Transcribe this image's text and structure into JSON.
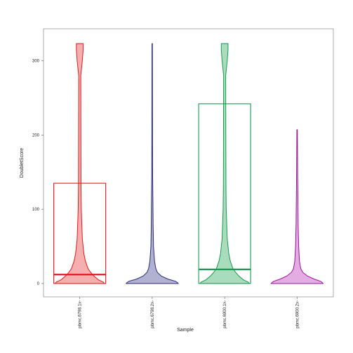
{
  "chart_data": {
    "type": "violin",
    "xlabel": "Sample",
    "ylabel": "DoubletScore",
    "ylim": [
      -18,
      343
    ],
    "yticks": [
      0,
      100,
      200,
      300
    ],
    "categories": [
      "pbmc.6798.1x",
      "pbmc.6798.2x",
      "pbmc.6900.1x",
      "pbmc.6900.2x"
    ],
    "tick_labels": [
      "pbmc.6798.1x-",
      "pbmc.6798.2x-",
      "pbmc.6900.1x-",
      "pbmc.6900.2x-"
    ],
    "series": [
      {
        "color": "#e41a1c",
        "fill": "#f4a6a6",
        "box": {
          "lower": 0,
          "median": 12,
          "upper": 135
        },
        "violin_max": 323,
        "profile": [
          [
            0,
            0.95
          ],
          [
            2,
            0.9
          ],
          [
            5,
            0.72
          ],
          [
            10,
            0.55
          ],
          [
            15,
            0.42
          ],
          [
            20,
            0.32
          ],
          [
            30,
            0.22
          ],
          [
            40,
            0.16
          ],
          [
            60,
            0.1
          ],
          [
            80,
            0.08
          ],
          [
            100,
            0.06
          ],
          [
            130,
            0.05
          ],
          [
            200,
            0.045
          ],
          [
            280,
            0.04
          ],
          [
            300,
            0.1
          ],
          [
            315,
            0.13
          ],
          [
            323,
            0.13
          ]
        ]
      },
      {
        "color": "#2b2b7a",
        "fill": "#a8a8cc",
        "box": null,
        "violin_max": 323,
        "profile": [
          [
            0,
            1.0
          ],
          [
            1,
            0.98
          ],
          [
            3,
            0.9
          ],
          [
            6,
            0.6
          ],
          [
            10,
            0.35
          ],
          [
            15,
            0.2
          ],
          [
            20,
            0.14
          ],
          [
            30,
            0.09
          ],
          [
            50,
            0.05
          ],
          [
            80,
            0.035
          ],
          [
            100,
            0.03
          ],
          [
            150,
            0.015
          ],
          [
            200,
            0.012
          ],
          [
            323,
            0.008
          ]
        ]
      },
      {
        "color": "#1a9a50",
        "fill": "#9fd8b6",
        "box": {
          "lower": 0,
          "median": 19,
          "upper": 242
        },
        "violin_max": 323,
        "profile": [
          [
            0,
            0.95
          ],
          [
            2,
            0.9
          ],
          [
            5,
            0.72
          ],
          [
            10,
            0.55
          ],
          [
            15,
            0.42
          ],
          [
            20,
            0.32
          ],
          [
            30,
            0.22
          ],
          [
            40,
            0.16
          ],
          [
            60,
            0.1
          ],
          [
            80,
            0.08
          ],
          [
            100,
            0.06
          ],
          [
            130,
            0.05
          ],
          [
            200,
            0.045
          ],
          [
            280,
            0.04
          ],
          [
            300,
            0.1
          ],
          [
            315,
            0.13
          ],
          [
            323,
            0.13
          ]
        ]
      },
      {
        "color": "#9a169a",
        "fill": "#e0a4e0",
        "box": null,
        "violin_max": 207,
        "profile": [
          [
            0,
            1.0
          ],
          [
            1,
            0.98
          ],
          [
            3,
            0.9
          ],
          [
            6,
            0.65
          ],
          [
            10,
            0.4
          ],
          [
            15,
            0.22
          ],
          [
            20,
            0.14
          ],
          [
            30,
            0.09
          ],
          [
            50,
            0.06
          ],
          [
            80,
            0.04
          ],
          [
            100,
            0.035
          ],
          [
            150,
            0.02
          ],
          [
            207,
            0.01
          ]
        ]
      }
    ],
    "grid": false,
    "legend": "none"
  }
}
